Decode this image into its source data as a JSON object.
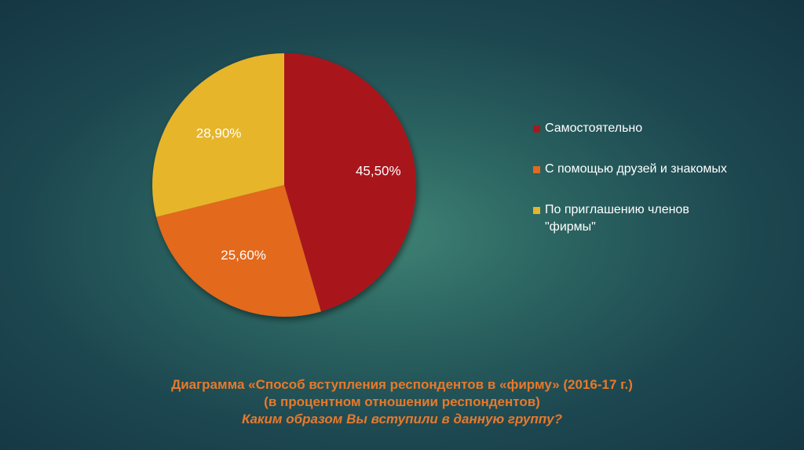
{
  "chart_data": {
    "type": "pie",
    "slices": [
      {
        "name": "Самостоятельно",
        "value": 45.5,
        "label": "45,50%",
        "color": "#a8191c"
      },
      {
        "name": "С помощью друзей и знакомых",
        "value": 25.6,
        "label": "25,60%",
        "color": "#e3691c"
      },
      {
        "name": "По приглашению членов \"фирмы\"",
        "value": 28.9,
        "label": "28,90%",
        "color": "#e6b52c"
      }
    ],
    "legend_position": "right",
    "caption": {
      "line1": "Диаграмма «Способ вступления респондентов в «фирму» (2016-17 г.)",
      "line2": "(в процентном отношении респондентов)",
      "line3": "Каким образом Вы вступили в данную группу?"
    }
  }
}
